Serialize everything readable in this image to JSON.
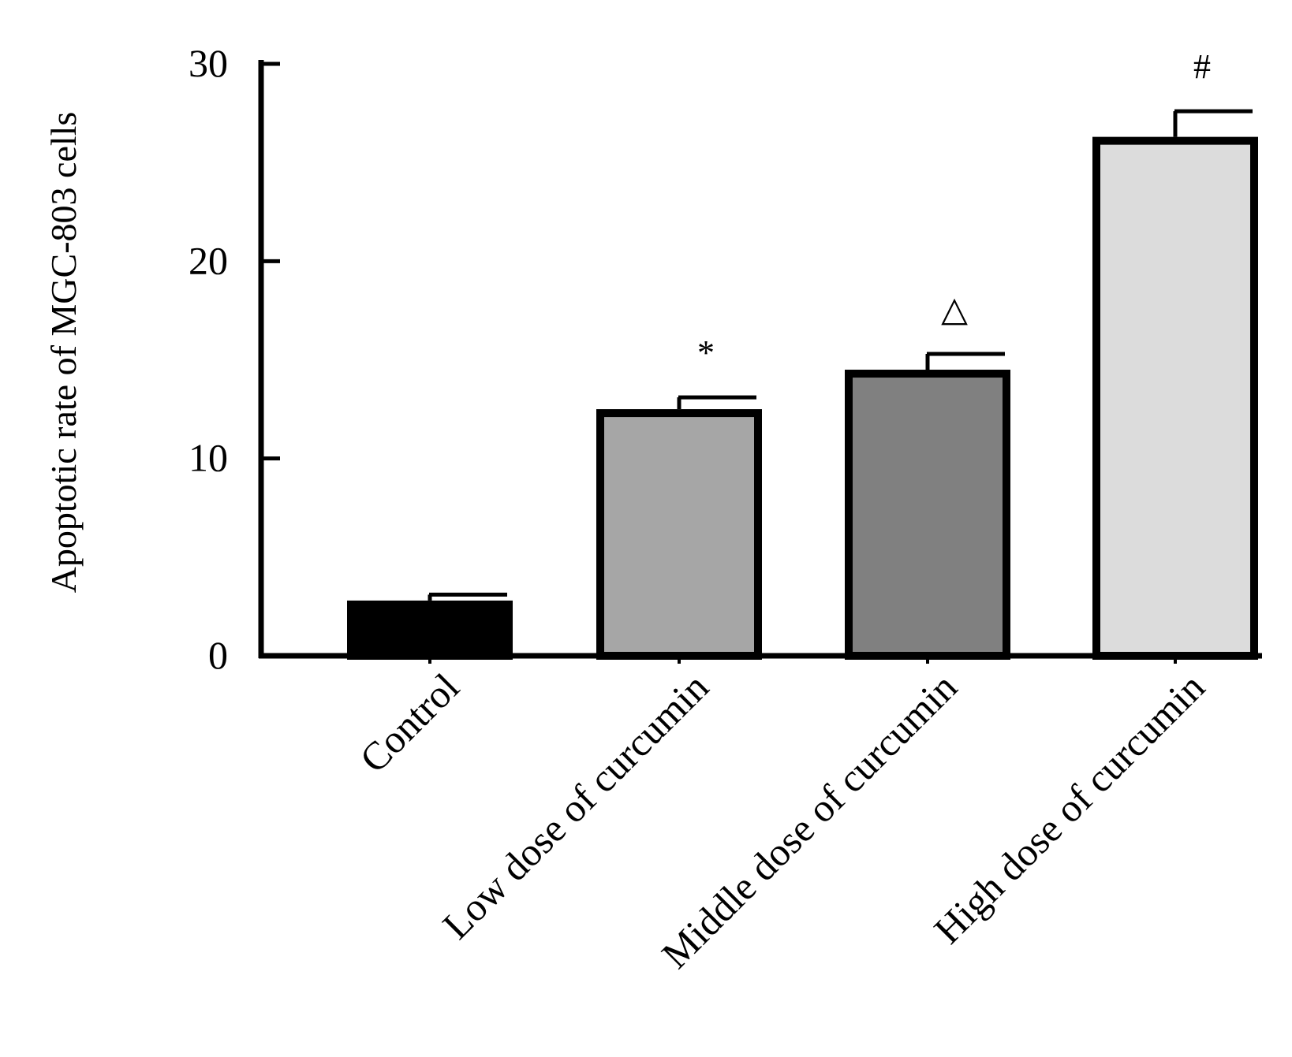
{
  "chart_data": {
    "type": "bar",
    "title": "",
    "xlabel": "",
    "ylabel": "Apoptotic rate of MGC-803 cells",
    "ylim": [
      0,
      30
    ],
    "yticks": [
      0,
      10,
      20,
      30
    ],
    "grid": false,
    "categories": [
      "Control",
      "Low dose of curcumin",
      "Middle dose of curcumin",
      "High dose of curcumin"
    ],
    "values": [
      2.6,
      12.3,
      14.3,
      26.1
    ],
    "errors": [
      0.5,
      0.8,
      1.0,
      1.5
    ],
    "markers": [
      "",
      "*",
      "△",
      "#"
    ],
    "colors": [
      "#000000",
      "#a6a6a6",
      "#808080",
      "#dcdcdc"
    ]
  }
}
